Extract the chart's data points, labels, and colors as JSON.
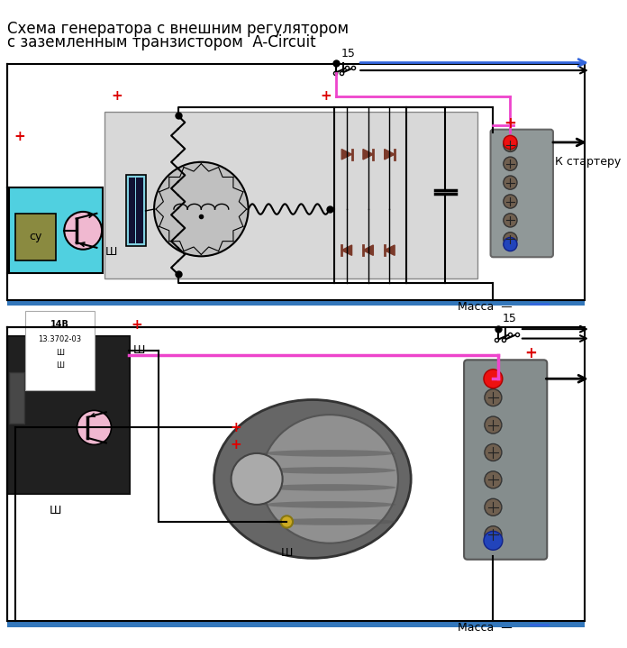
{
  "title_line1": "Схема генератора с внешним регулятором",
  "title_line2": "с заземленным транзистором  A-Circuit",
  "title_fontsize": 12,
  "bg_color": "#ffffff",
  "gray_box_color": "#d8d8d8",
  "cyan_color": "#50d0e0",
  "label_15": "15",
  "label_massa": "Масса  —",
  "label_k_starteru": "К стартеру",
  "label_sy": "су",
  "label_sh": "Ш",
  "blue_bar_color": "#3377bb",
  "diode_color": "#7b3a2a",
  "wire_pink": "#ee44cc",
  "wire_blue": "#3366dd",
  "wire_black": "#000000",
  "red_plus_color": "#dd0000",
  "tb_color": "#909898",
  "tb_screw_color": "#706050",
  "cyan_box": "#00c8d8",
  "sy_box_color": "#8a8a40",
  "pink_transistor": "#f0b8d0"
}
